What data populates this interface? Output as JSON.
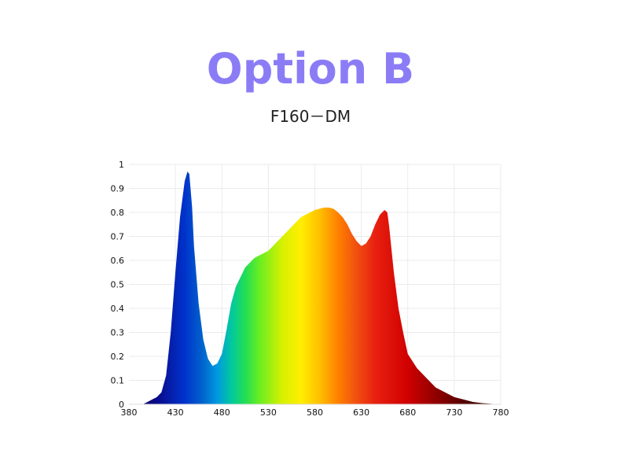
{
  "header": {
    "title": "Option B",
    "subtitle": "F160－DM"
  },
  "colors": {
    "title": "#8b7cf6",
    "grid": "#ebebeb"
  },
  "chart_data": {
    "type": "area",
    "title": "",
    "xlabel": "",
    "ylabel": "",
    "xlim": [
      380,
      780
    ],
    "ylim": [
      0,
      1
    ],
    "xticks": [
      "380",
      "430",
      "480",
      "530",
      "580",
      "630",
      "680",
      "730",
      "780"
    ],
    "yticks": [
      "0",
      "0.1",
      "0.2",
      "0.3",
      "0.4",
      "0.5",
      "0.6",
      "0.7",
      "0.8",
      "0.9",
      "1"
    ],
    "grid": true,
    "fill": "spectral color gradient by wavelength",
    "series": [
      {
        "x": [
          380,
          395,
          400,
          405,
          410,
          415,
          420,
          425,
          430,
          435,
          440,
          443,
          445,
          448,
          450,
          455,
          460,
          465,
          470,
          475,
          480,
          485,
          490,
          495,
          500,
          505,
          510,
          515,
          520,
          525,
          530,
          535,
          540,
          545,
          550,
          555,
          560,
          565,
          570,
          575,
          580,
          585,
          590,
          595,
          600,
          605,
          610,
          615,
          620,
          625,
          630,
          635,
          640,
          645,
          650,
          655,
          658,
          660,
          665,
          670,
          675,
          680,
          690,
          700,
          710,
          720,
          730,
          740,
          750,
          760,
          770,
          780
        ],
        "values": [
          0,
          0,
          0.01,
          0.02,
          0.03,
          0.05,
          0.12,
          0.3,
          0.55,
          0.78,
          0.93,
          0.97,
          0.96,
          0.82,
          0.66,
          0.42,
          0.27,
          0.19,
          0.16,
          0.17,
          0.21,
          0.31,
          0.42,
          0.49,
          0.53,
          0.57,
          0.59,
          0.61,
          0.62,
          0.63,
          0.64,
          0.66,
          0.68,
          0.7,
          0.72,
          0.74,
          0.76,
          0.78,
          0.79,
          0.8,
          0.81,
          0.815,
          0.82,
          0.82,
          0.815,
          0.8,
          0.78,
          0.75,
          0.71,
          0.68,
          0.66,
          0.67,
          0.7,
          0.75,
          0.79,
          0.81,
          0.8,
          0.74,
          0.55,
          0.4,
          0.3,
          0.21,
          0.15,
          0.11,
          0.07,
          0.05,
          0.03,
          0.02,
          0.01,
          0.005,
          0.002,
          0
        ]
      }
    ]
  }
}
